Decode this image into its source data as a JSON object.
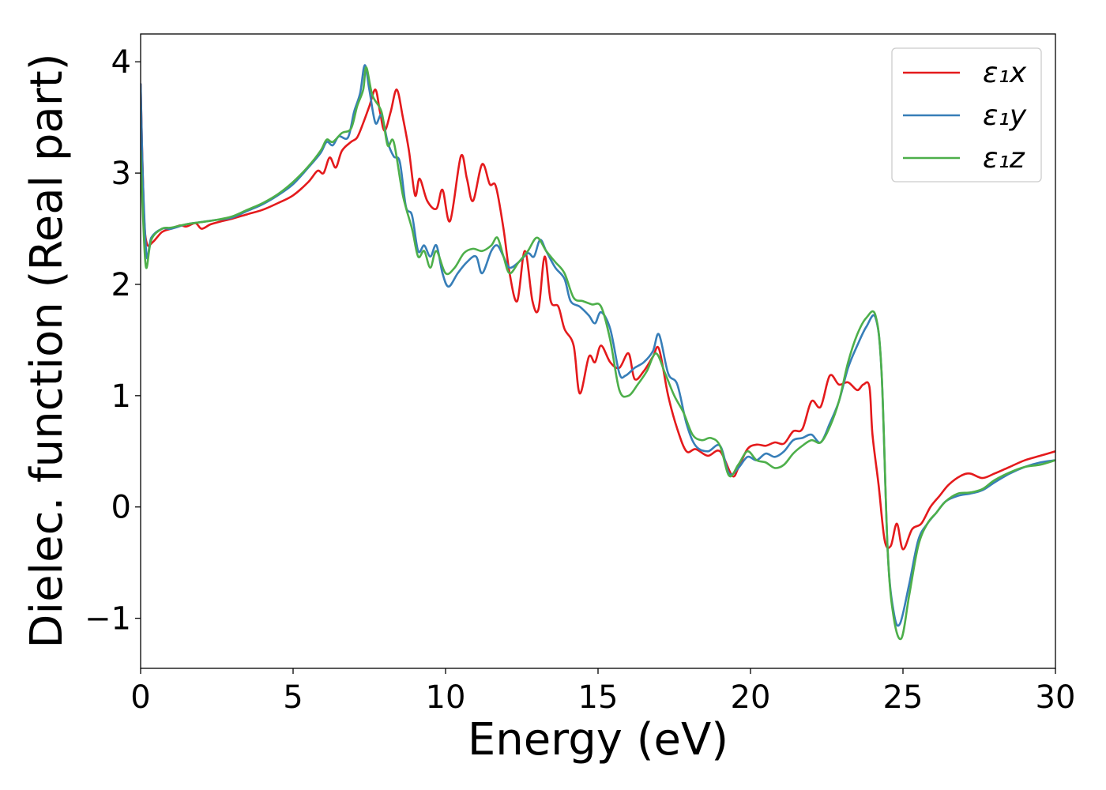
{
  "chart_data": {
    "type": "line",
    "xlabel": "Energy (eV)",
    "ylabel": "Dielec. function (Real part)",
    "xlim": [
      0,
      30
    ],
    "ylim": [
      -1.45,
      4.25
    ],
    "x_ticks": [
      0,
      5,
      10,
      15,
      20,
      25,
      30
    ],
    "x_tick_labels": [
      "0",
      "5",
      "10",
      "15",
      "20",
      "25",
      "30"
    ],
    "y_ticks": [
      -1,
      0,
      1,
      2,
      3,
      4
    ],
    "y_tick_labels": [
      "−1",
      "0",
      "1",
      "2",
      "3",
      "4"
    ],
    "grid": false,
    "legend_position": "top-right",
    "series": [
      {
        "name": "ε₁x",
        "color": "#e41a1c",
        "points": [
          [
            0,
            3.8
          ],
          [
            0.1,
            2.7
          ],
          [
            0.2,
            2.37
          ],
          [
            0.4,
            2.38
          ],
          [
            0.7,
            2.47
          ],
          [
            1,
            2.5
          ],
          [
            1.3,
            2.53
          ],
          [
            1.5,
            2.52
          ],
          [
            1.8,
            2.55
          ],
          [
            2,
            2.5
          ],
          [
            2.3,
            2.54
          ],
          [
            2.7,
            2.57
          ],
          [
            3,
            2.59
          ],
          [
            3.5,
            2.63
          ],
          [
            4,
            2.67
          ],
          [
            4.5,
            2.73
          ],
          [
            5,
            2.8
          ],
          [
            5.5,
            2.92
          ],
          [
            5.8,
            3.02
          ],
          [
            6,
            3.0
          ],
          [
            6.2,
            3.14
          ],
          [
            6.4,
            3.05
          ],
          [
            6.6,
            3.2
          ],
          [
            6.9,
            3.28
          ],
          [
            7.1,
            3.32
          ],
          [
            7.3,
            3.45
          ],
          [
            7.5,
            3.6
          ],
          [
            7.7,
            3.75
          ],
          [
            7.85,
            3.55
          ],
          [
            8.0,
            3.38
          ],
          [
            8.2,
            3.55
          ],
          [
            8.4,
            3.75
          ],
          [
            8.6,
            3.5
          ],
          [
            8.8,
            3.2
          ],
          [
            9.0,
            2.8
          ],
          [
            9.15,
            2.95
          ],
          [
            9.4,
            2.75
          ],
          [
            9.7,
            2.68
          ],
          [
            9.9,
            2.85
          ],
          [
            10.15,
            2.57
          ],
          [
            10.5,
            3.15
          ],
          [
            10.7,
            2.95
          ],
          [
            10.9,
            2.75
          ],
          [
            11.2,
            3.08
          ],
          [
            11.45,
            2.9
          ],
          [
            11.65,
            2.88
          ],
          [
            11.9,
            2.5
          ],
          [
            12.1,
            2.1
          ],
          [
            12.35,
            1.85
          ],
          [
            12.6,
            2.3
          ],
          [
            12.85,
            1.85
          ],
          [
            13.05,
            1.78
          ],
          [
            13.25,
            2.25
          ],
          [
            13.45,
            1.85
          ],
          [
            13.7,
            1.8
          ],
          [
            13.9,
            1.6
          ],
          [
            14.2,
            1.45
          ],
          [
            14.4,
            1.02
          ],
          [
            14.7,
            1.35
          ],
          [
            14.9,
            1.3
          ],
          [
            15.1,
            1.45
          ],
          [
            15.4,
            1.3
          ],
          [
            15.7,
            1.25
          ],
          [
            16.0,
            1.38
          ],
          [
            16.2,
            1.15
          ],
          [
            16.5,
            1.22
          ],
          [
            16.8,
            1.35
          ],
          [
            17.0,
            1.42
          ],
          [
            17.3,
            1.0
          ],
          [
            17.6,
            0.7
          ],
          [
            17.9,
            0.5
          ],
          [
            18.2,
            0.52
          ],
          [
            18.6,
            0.46
          ],
          [
            19.0,
            0.5
          ],
          [
            19.4,
            0.28
          ],
          [
            19.6,
            0.35
          ],
          [
            19.9,
            0.52
          ],
          [
            20.2,
            0.56
          ],
          [
            20.5,
            0.55
          ],
          [
            20.8,
            0.58
          ],
          [
            21.1,
            0.57
          ],
          [
            21.4,
            0.68
          ],
          [
            21.7,
            0.7
          ],
          [
            22.0,
            0.95
          ],
          [
            22.3,
            0.9
          ],
          [
            22.6,
            1.18
          ],
          [
            22.9,
            1.1
          ],
          [
            23.2,
            1.12
          ],
          [
            23.5,
            1.05
          ],
          [
            23.7,
            1.1
          ],
          [
            23.9,
            1.08
          ],
          [
            24.0,
            0.65
          ],
          [
            24.2,
            0.2
          ],
          [
            24.4,
            -0.3
          ],
          [
            24.6,
            -0.35
          ],
          [
            24.8,
            -0.15
          ],
          [
            25.0,
            -0.38
          ],
          [
            25.3,
            -0.2
          ],
          [
            25.6,
            -0.15
          ],
          [
            25.9,
            0.0
          ],
          [
            26.2,
            0.1
          ],
          [
            26.5,
            0.2
          ],
          [
            26.9,
            0.28
          ],
          [
            27.2,
            0.3
          ],
          [
            27.6,
            0.26
          ],
          [
            28.0,
            0.3
          ],
          [
            28.5,
            0.36
          ],
          [
            29.0,
            0.42
          ],
          [
            29.5,
            0.46
          ],
          [
            30,
            0.5
          ]
        ]
      },
      {
        "name": "ε₁y",
        "color": "#377eb8",
        "points": [
          [
            0,
            3.8
          ],
          [
            0.08,
            2.9
          ],
          [
            0.2,
            2.25
          ],
          [
            0.35,
            2.42
          ],
          [
            0.7,
            2.5
          ],
          [
            1,
            2.5
          ],
          [
            1.5,
            2.54
          ],
          [
            2,
            2.56
          ],
          [
            2.5,
            2.58
          ],
          [
            3,
            2.6
          ],
          [
            3.5,
            2.66
          ],
          [
            4,
            2.72
          ],
          [
            4.5,
            2.8
          ],
          [
            5,
            2.9
          ],
          [
            5.5,
            3.05
          ],
          [
            5.9,
            3.18
          ],
          [
            6.1,
            3.28
          ],
          [
            6.3,
            3.25
          ],
          [
            6.5,
            3.33
          ],
          [
            6.8,
            3.32
          ],
          [
            7.0,
            3.55
          ],
          [
            7.2,
            3.72
          ],
          [
            7.35,
            3.97
          ],
          [
            7.5,
            3.75
          ],
          [
            7.7,
            3.45
          ],
          [
            7.9,
            3.52
          ],
          [
            8.1,
            3.28
          ],
          [
            8.3,
            3.15
          ],
          [
            8.5,
            3.1
          ],
          [
            8.7,
            2.7
          ],
          [
            8.9,
            2.62
          ],
          [
            9.1,
            2.3
          ],
          [
            9.3,
            2.35
          ],
          [
            9.5,
            2.25
          ],
          [
            9.7,
            2.35
          ],
          [
            9.9,
            2.1
          ],
          [
            10.1,
            1.98
          ],
          [
            10.4,
            2.1
          ],
          [
            10.7,
            2.2
          ],
          [
            11.0,
            2.25
          ],
          [
            11.2,
            2.1
          ],
          [
            11.5,
            2.3
          ],
          [
            11.7,
            2.35
          ],
          [
            11.9,
            2.25
          ],
          [
            12.1,
            2.15
          ],
          [
            12.4,
            2.2
          ],
          [
            12.7,
            2.28
          ],
          [
            12.9,
            2.25
          ],
          [
            13.1,
            2.4
          ],
          [
            13.3,
            2.3
          ],
          [
            13.6,
            2.15
          ],
          [
            13.9,
            2.05
          ],
          [
            14.1,
            1.85
          ],
          [
            14.4,
            1.8
          ],
          [
            14.7,
            1.72
          ],
          [
            14.9,
            1.65
          ],
          [
            15.1,
            1.75
          ],
          [
            15.4,
            1.6
          ],
          [
            15.7,
            1.2
          ],
          [
            15.9,
            1.18
          ],
          [
            16.2,
            1.25
          ],
          [
            16.5,
            1.3
          ],
          [
            16.8,
            1.4
          ],
          [
            17.0,
            1.55
          ],
          [
            17.3,
            1.2
          ],
          [
            17.6,
            1.1
          ],
          [
            17.9,
            0.75
          ],
          [
            18.2,
            0.55
          ],
          [
            18.6,
            0.5
          ],
          [
            19.0,
            0.55
          ],
          [
            19.3,
            0.3
          ],
          [
            19.6,
            0.35
          ],
          [
            19.9,
            0.45
          ],
          [
            20.2,
            0.42
          ],
          [
            20.5,
            0.48
          ],
          [
            20.8,
            0.45
          ],
          [
            21.1,
            0.5
          ],
          [
            21.4,
            0.6
          ],
          [
            21.7,
            0.62
          ],
          [
            22.0,
            0.65
          ],
          [
            22.3,
            0.58
          ],
          [
            22.6,
            0.75
          ],
          [
            22.9,
            0.95
          ],
          [
            23.2,
            1.25
          ],
          [
            23.5,
            1.45
          ],
          [
            23.8,
            1.62
          ],
          [
            24.1,
            1.7
          ],
          [
            24.3,
            1.2
          ],
          [
            24.5,
            -0.4
          ],
          [
            24.7,
            -0.95
          ],
          [
            24.9,
            -1.05
          ],
          [
            25.2,
            -0.7
          ],
          [
            25.5,
            -0.3
          ],
          [
            25.8,
            -0.15
          ],
          [
            26.1,
            -0.05
          ],
          [
            26.4,
            0.05
          ],
          [
            26.8,
            0.1
          ],
          [
            27.2,
            0.12
          ],
          [
            27.6,
            0.15
          ],
          [
            28.0,
            0.22
          ],
          [
            28.5,
            0.3
          ],
          [
            29.0,
            0.36
          ],
          [
            29.5,
            0.4
          ],
          [
            30,
            0.42
          ]
        ]
      },
      {
        "name": "ε₁z",
        "color": "#4daf4a",
        "points": [
          [
            0,
            3.2
          ],
          [
            0.08,
            2.6
          ],
          [
            0.18,
            2.15
          ],
          [
            0.35,
            2.4
          ],
          [
            0.7,
            2.5
          ],
          [
            1,
            2.51
          ],
          [
            1.5,
            2.54
          ],
          [
            2,
            2.56
          ],
          [
            2.5,
            2.58
          ],
          [
            3,
            2.61
          ],
          [
            3.5,
            2.67
          ],
          [
            4,
            2.73
          ],
          [
            4.5,
            2.81
          ],
          [
            5,
            2.92
          ],
          [
            5.5,
            3.06
          ],
          [
            5.9,
            3.2
          ],
          [
            6.1,
            3.3
          ],
          [
            6.3,
            3.28
          ],
          [
            6.6,
            3.36
          ],
          [
            6.9,
            3.4
          ],
          [
            7.1,
            3.6
          ],
          [
            7.3,
            3.75
          ],
          [
            7.4,
            3.95
          ],
          [
            7.6,
            3.7
          ],
          [
            7.9,
            3.55
          ],
          [
            8.1,
            3.25
          ],
          [
            8.3,
            3.28
          ],
          [
            8.6,
            2.8
          ],
          [
            8.9,
            2.5
          ],
          [
            9.1,
            2.25
          ],
          [
            9.3,
            2.3
          ],
          [
            9.5,
            2.15
          ],
          [
            9.7,
            2.3
          ],
          [
            10.0,
            2.1
          ],
          [
            10.3,
            2.15
          ],
          [
            10.6,
            2.28
          ],
          [
            10.9,
            2.32
          ],
          [
            11.2,
            2.3
          ],
          [
            11.5,
            2.35
          ],
          [
            11.7,
            2.42
          ],
          [
            11.9,
            2.25
          ],
          [
            12.1,
            2.1
          ],
          [
            12.4,
            2.2
          ],
          [
            12.7,
            2.3
          ],
          [
            13.0,
            2.42
          ],
          [
            13.3,
            2.3
          ],
          [
            13.6,
            2.2
          ],
          [
            13.9,
            2.1
          ],
          [
            14.2,
            1.88
          ],
          [
            14.5,
            1.85
          ],
          [
            14.8,
            1.82
          ],
          [
            15.1,
            1.8
          ],
          [
            15.4,
            1.5
          ],
          [
            15.7,
            1.05
          ],
          [
            16.0,
            1.0
          ],
          [
            16.3,
            1.1
          ],
          [
            16.6,
            1.22
          ],
          [
            16.9,
            1.38
          ],
          [
            17.2,
            1.2
          ],
          [
            17.5,
            1.0
          ],
          [
            17.8,
            0.85
          ],
          [
            18.1,
            0.65
          ],
          [
            18.4,
            0.6
          ],
          [
            18.7,
            0.62
          ],
          [
            19.0,
            0.55
          ],
          [
            19.3,
            0.28
          ],
          [
            19.6,
            0.38
          ],
          [
            19.9,
            0.5
          ],
          [
            20.2,
            0.42
          ],
          [
            20.5,
            0.4
          ],
          [
            20.8,
            0.35
          ],
          [
            21.1,
            0.38
          ],
          [
            21.4,
            0.48
          ],
          [
            21.7,
            0.55
          ],
          [
            22.0,
            0.6
          ],
          [
            22.3,
            0.58
          ],
          [
            22.6,
            0.72
          ],
          [
            22.9,
            0.95
          ],
          [
            23.2,
            1.3
          ],
          [
            23.5,
            1.55
          ],
          [
            23.8,
            1.7
          ],
          [
            24.1,
            1.72
          ],
          [
            24.3,
            1.2
          ],
          [
            24.5,
            -0.4
          ],
          [
            24.7,
            -1.0
          ],
          [
            24.95,
            -1.18
          ],
          [
            25.2,
            -0.8
          ],
          [
            25.5,
            -0.35
          ],
          [
            25.8,
            -0.15
          ],
          [
            26.1,
            -0.05
          ],
          [
            26.4,
            0.05
          ],
          [
            26.8,
            0.12
          ],
          [
            27.2,
            0.13
          ],
          [
            27.6,
            0.16
          ],
          [
            28.0,
            0.24
          ],
          [
            28.5,
            0.31
          ],
          [
            29.0,
            0.36
          ],
          [
            29.5,
            0.38
          ],
          [
            30,
            0.42
          ]
        ]
      }
    ]
  }
}
